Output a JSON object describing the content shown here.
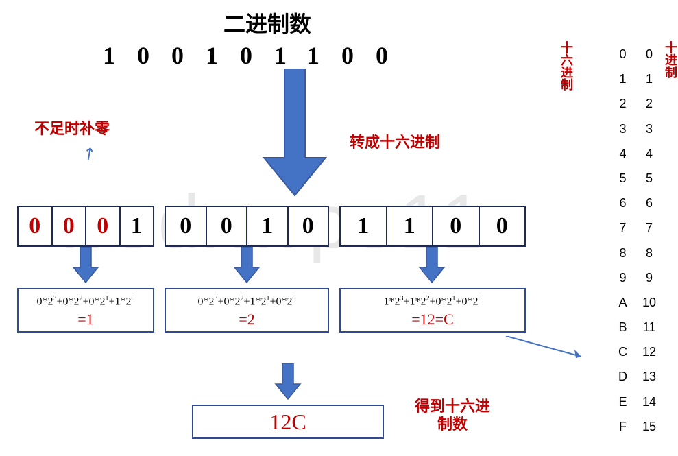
{
  "title": "二进制数",
  "binary_digits": "100101100",
  "labels": {
    "pad_zero": "不足时补零",
    "convert": "转成十六进制",
    "result": "得到十六进制数",
    "hex_header": "十六进制",
    "dec_header": "十进制"
  },
  "groups": [
    {
      "digits": [
        "0",
        "0",
        "0",
        "1"
      ],
      "red_mask": [
        1,
        1,
        1,
        0
      ],
      "formula_html": "0*2<sup>3</sup>+0*2<sup>2</sup>+0*2<sup>1</sup>+1*2<sup>0</sup>",
      "result": "=1"
    },
    {
      "digits": [
        "0",
        "0",
        "1",
        "0"
      ],
      "red_mask": [
        0,
        0,
        0,
        0
      ],
      "formula_html": "0*2<sup>3</sup>+0*2<sup>2</sup>+1*2<sup>1</sup>+0*2<sup>0</sup>",
      "result": "=2"
    },
    {
      "digits": [
        "1",
        "1",
        "0",
        "0"
      ],
      "red_mask": [
        0,
        0,
        0,
        0
      ],
      "formula_html": "1*2<sup>3</sup>+1*2<sup>2</sup>+0*2<sup>1</sup>+0*2<sup>0</sup>",
      "result": "=12=C"
    }
  ],
  "final_result": "12C",
  "lookup_table": {
    "hex": [
      "0",
      "1",
      "2",
      "3",
      "4",
      "5",
      "6",
      "7",
      "8",
      "9",
      "A",
      "B",
      "C",
      "D",
      "E",
      "F"
    ],
    "dec": [
      "0",
      "1",
      "2",
      "3",
      "4",
      "5",
      "6",
      "7",
      "8",
      "9",
      "10",
      "11",
      "12",
      "13",
      "14",
      "15"
    ]
  },
  "colors": {
    "accent_red": "#c00000",
    "arrow_blue": "#4472c4",
    "border_dark": "#1f2a55",
    "border_blue": "#2f4a92",
    "background": "#ffffff",
    "watermark": "#e8e8e8"
  },
  "watermark": "wsdxwps11"
}
